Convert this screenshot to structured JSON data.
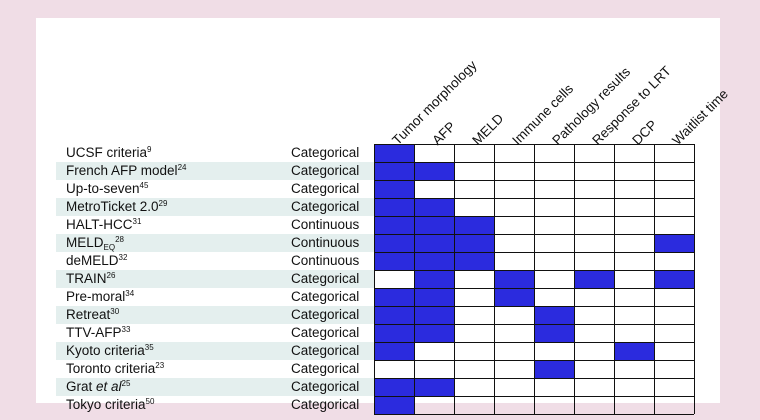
{
  "colors": {
    "background": "#f0dde6",
    "panel": "#ffffff",
    "filled_cell": "#2b2bde",
    "band_shade": "#e4efee",
    "grid_line": "#111111"
  },
  "columns": [
    "Tumor morphology",
    "AFP",
    "MELD",
    "Immune cells",
    "Pathology results",
    "Response to LRT",
    "DCP",
    "Waitlist time"
  ],
  "rows": [
    {
      "name": "UCSF criteria",
      "sup": "9",
      "type": "Categorical",
      "cells": [
        1,
        0,
        0,
        0,
        0,
        0,
        0,
        0
      ]
    },
    {
      "name": "French AFP model",
      "sup": "24",
      "type": "Categorical",
      "cells": [
        1,
        1,
        0,
        0,
        0,
        0,
        0,
        0
      ]
    },
    {
      "name": "Up-to-seven",
      "sup": "45",
      "type": "Categorical",
      "cells": [
        1,
        0,
        0,
        0,
        0,
        0,
        0,
        0
      ]
    },
    {
      "name": "MetroTicket 2.0",
      "sup": "29",
      "type": "Categorical",
      "cells": [
        1,
        1,
        0,
        0,
        0,
        0,
        0,
        0
      ]
    },
    {
      "name": "HALT-HCC",
      "sup": "31",
      "type": "Continuous",
      "cells": [
        1,
        1,
        1,
        0,
        0,
        0,
        0,
        0
      ]
    },
    {
      "name": "MELD",
      "sub": "EQ",
      "sup": "28",
      "type": "Continuous",
      "cells": [
        1,
        1,
        1,
        0,
        0,
        0,
        0,
        1
      ]
    },
    {
      "name": "deMELD",
      "sup": "32",
      "type": "Continuous",
      "cells": [
        1,
        1,
        1,
        0,
        0,
        0,
        0,
        0
      ]
    },
    {
      "name": "TRAIN",
      "sup": "26",
      "type": "Categorical",
      "cells": [
        0,
        1,
        0,
        1,
        0,
        1,
        0,
        1
      ]
    },
    {
      "name": "Pre-moral",
      "sup": "34",
      "type": "Categorical",
      "cells": [
        1,
        1,
        0,
        1,
        0,
        0,
        0,
        0
      ]
    },
    {
      "name": "Retreat",
      "sup": "30",
      "type": "Categorical",
      "cells": [
        1,
        1,
        0,
        0,
        1,
        0,
        0,
        0
      ]
    },
    {
      "name": "TTV-AFP",
      "sup": "33",
      "type": "Categorical",
      "cells": [
        1,
        1,
        0,
        0,
        1,
        0,
        0,
        0
      ]
    },
    {
      "name": "Kyoto criteria",
      "sup": "35",
      "type": "Categorical",
      "cells": [
        1,
        0,
        0,
        0,
        0,
        0,
        1,
        0
      ]
    },
    {
      "name": "Toronto criteria",
      "sup": "23",
      "type": "Categorical",
      "cells": [
        0,
        0,
        0,
        0,
        1,
        0,
        0,
        0
      ]
    },
    {
      "name": "Grat ",
      "ital": "et al",
      "sup": "25",
      "type": "Categorical",
      "cells": [
        1,
        1,
        0,
        0,
        0,
        0,
        0,
        0
      ]
    },
    {
      "name": "Tokyo criteria",
      "sup": "50",
      "type": "Categorical",
      "cells": [
        1,
        0,
        0,
        0,
        0,
        0,
        0,
        0
      ]
    }
  ]
}
